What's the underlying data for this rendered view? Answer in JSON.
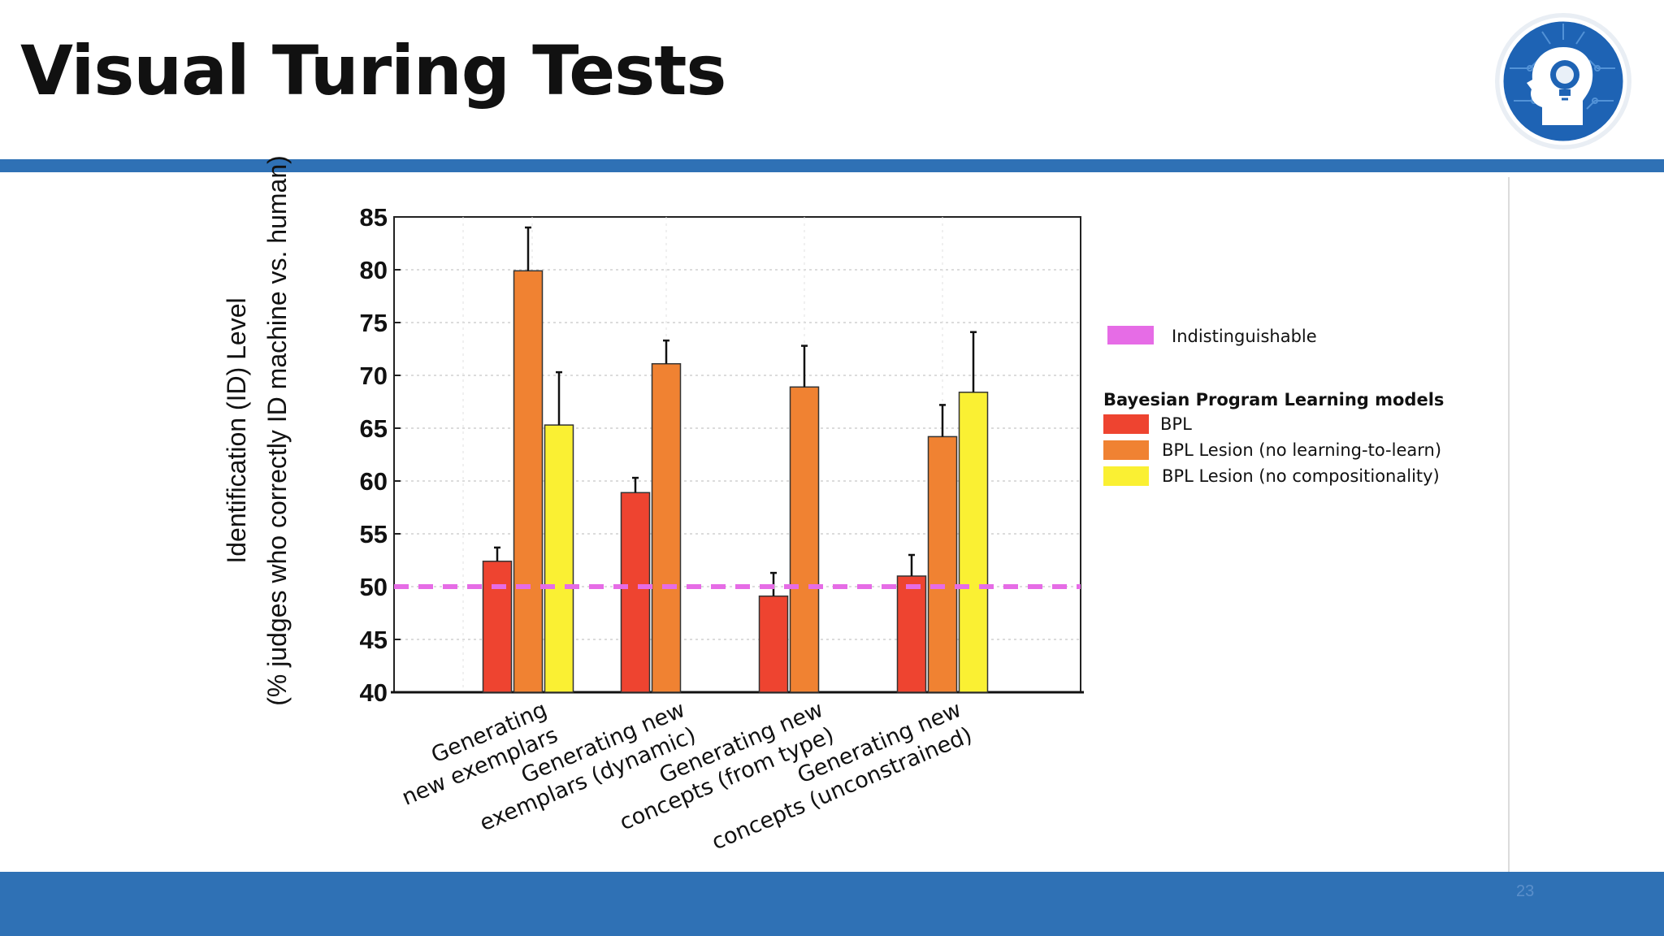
{
  "slide": {
    "title": "Visual Turing Tests",
    "page_number": "23",
    "logo_icon": "brain-lightbulb-head-icon",
    "accent_color": "#2f71b5"
  },
  "chart_data": {
    "type": "bar",
    "ylabel_line1": "Identification (ID) Level",
    "ylabel_line2": "(% judges who correctly ID machine vs. human)",
    "ylim": [
      40,
      85
    ],
    "yticks": [
      40,
      45,
      50,
      55,
      60,
      65,
      70,
      75,
      80,
      85
    ],
    "grid": true,
    "categories": [
      [
        "Generating",
        "new exemplars"
      ],
      [
        "Generating new",
        "exemplars (dynamic)"
      ],
      [
        "Generating new",
        "concepts (from type)"
      ],
      [
        "Generating new",
        "concepts (unconstrained)"
      ]
    ],
    "legend_placement": "right",
    "legend_group_title": "Bayesian Program Learning models",
    "reference_line": {
      "name": "Indistinguishable",
      "value": 50,
      "color": "#e66ce6"
    },
    "series": [
      {
        "name": "BPL",
        "color": "#ee4430",
        "values": [
          52.4,
          58.9,
          49.1,
          51.0
        ],
        "error_upper": [
          53.7,
          60.3,
          51.3,
          53.0
        ]
      },
      {
        "name": "BPL Lesion (no learning-to-learn)",
        "color": "#f08232",
        "values": [
          79.9,
          71.1,
          68.9,
          64.2
        ],
        "error_upper": [
          84.0,
          73.3,
          72.8,
          67.2
        ]
      },
      {
        "name": "BPL Lesion (no compositionality)",
        "color": "#faf033",
        "values": [
          65.3,
          null,
          null,
          68.4
        ],
        "error_upper": [
          70.3,
          null,
          null,
          74.1
        ]
      }
    ]
  }
}
